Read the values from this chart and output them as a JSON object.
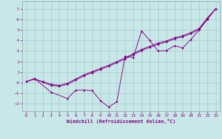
{
  "xlabel": "Windchill (Refroidissement éolien,°C)",
  "background_color": "#c8e8e8",
  "line_color": "#880088",
  "grid_color": "#aacccc",
  "xlim": [
    -0.5,
    23.5
  ],
  "ylim": [
    -2.7,
    7.7
  ],
  "yticks": [
    -2,
    -1,
    0,
    1,
    2,
    3,
    4,
    5,
    6,
    7
  ],
  "xticks": [
    0,
    1,
    2,
    3,
    4,
    5,
    6,
    7,
    8,
    9,
    10,
    11,
    12,
    13,
    14,
    15,
    16,
    17,
    18,
    19,
    20,
    21,
    22,
    23
  ],
  "s1_x": [
    0,
    1,
    3,
    5,
    6,
    7,
    8,
    9,
    10,
    11,
    12,
    13,
    14,
    15,
    16,
    17,
    18,
    19,
    20,
    21,
    22,
    23
  ],
  "s1_y": [
    0.1,
    0.4,
    -0.9,
    -1.5,
    -0.7,
    -0.7,
    -0.75,
    -1.7,
    -2.3,
    -1.8,
    2.5,
    2.4,
    4.9,
    4.0,
    3.0,
    3.05,
    3.5,
    3.3,
    4.1,
    5.0,
    6.0,
    7.0
  ],
  "s2_x": [
    0,
    1,
    2,
    3,
    4,
    5,
    6,
    7,
    8,
    9,
    10,
    11,
    12,
    13,
    14,
    15,
    16,
    17,
    18,
    19,
    20,
    21,
    22,
    23
  ],
  "s2_y": [
    0.1,
    0.35,
    0.05,
    -0.25,
    -0.35,
    -0.15,
    0.25,
    0.65,
    0.95,
    1.25,
    1.55,
    1.9,
    2.25,
    2.65,
    3.05,
    3.35,
    3.65,
    3.85,
    4.15,
    4.35,
    4.65,
    5.05,
    6.05,
    7.0
  ],
  "s3_x": [
    0,
    1,
    2,
    3,
    4,
    5,
    6,
    7,
    8,
    9,
    10,
    11,
    12,
    13,
    14,
    15,
    16,
    17,
    18,
    19,
    20,
    21,
    22,
    23
  ],
  "s3_y": [
    0.1,
    0.35,
    0.1,
    -0.15,
    -0.25,
    -0.05,
    0.35,
    0.75,
    1.05,
    1.35,
    1.65,
    2.0,
    2.35,
    2.75,
    3.15,
    3.45,
    3.75,
    3.95,
    4.25,
    4.45,
    4.75,
    5.15,
    6.15,
    7.0
  ]
}
